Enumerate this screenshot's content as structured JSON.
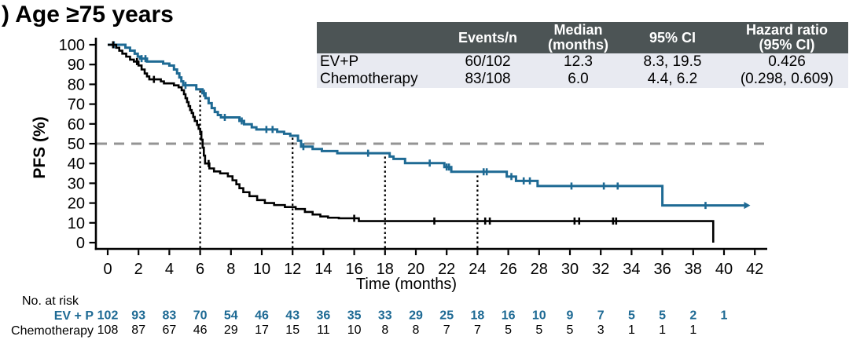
{
  "title": ") Age ≥75 years",
  "colors": {
    "evp_blue": "#1e6a94",
    "chemo_black": "#000000",
    "table_header_bg": "#4c5455",
    "table_row_bg": "#e8eaf1",
    "dashed_gray": "#949494"
  },
  "summary_table": {
    "corner_label": "",
    "headers": {
      "events": "Events/n",
      "median_line1": "Median",
      "median_line2": "(months)",
      "ci": "95% CI",
      "hr_line1": "Hazard ratio",
      "hr_line2": "(95% CI)"
    },
    "rows": [
      {
        "label": "EV+P",
        "events_n": "60/102",
        "median": "12.3",
        "ci": "8.3, 19.5",
        "hr": "0.426"
      },
      {
        "label": "Chemotherapy",
        "events_n": "83/108",
        "median": "6.0",
        "ci": "4.4, 6.2",
        "hr": "(0.298, 0.609)"
      }
    ]
  },
  "chart_data": {
    "type": "line",
    "subtype": "kaplan-meier-step",
    "title": ") Age ≥75 years",
    "xlabel": "Time (months)",
    "ylabel": "PFS (%)",
    "xlim": [
      0,
      42
    ],
    "ylim": [
      0,
      100
    ],
    "xticks": [
      0,
      2,
      4,
      6,
      8,
      10,
      12,
      14,
      16,
      18,
      20,
      22,
      24,
      26,
      28,
      30,
      32,
      34,
      36,
      38,
      40,
      42
    ],
    "yticks": [
      0,
      10,
      20,
      30,
      40,
      50,
      60,
      70,
      80,
      90,
      100
    ],
    "grid": false,
    "reference_lines": {
      "horizontal_dashed_y": 50,
      "vertical_dotted": [
        {
          "x": 6,
          "top_y": 77.5
        },
        {
          "x": 12,
          "top_y": 54
        },
        {
          "x": 18,
          "top_y": 43.5
        },
        {
          "x": 24,
          "top_y": 35.8
        }
      ]
    },
    "series": [
      {
        "name": "EV+P",
        "color": "#1e6a94",
        "start_y": 100,
        "steps": [
          [
            1.15,
            98.5
          ],
          [
            1.45,
            97
          ],
          [
            1.75,
            95.5
          ],
          [
            1.95,
            94
          ],
          [
            2.1,
            93
          ],
          [
            2.55,
            91.5
          ],
          [
            3.6,
            90.5
          ],
          [
            4.0,
            89.5
          ],
          [
            4.3,
            87.5
          ],
          [
            4.5,
            85.5
          ],
          [
            4.65,
            83.5
          ],
          [
            4.78,
            81.5
          ],
          [
            4.9,
            79.5
          ],
          [
            5.75,
            77.5
          ],
          [
            6.15,
            75.5
          ],
          [
            6.35,
            73
          ],
          [
            6.55,
            70.5
          ],
          [
            6.75,
            68
          ],
          [
            6.95,
            66
          ],
          [
            7.15,
            64.5
          ],
          [
            7.35,
            63.3
          ],
          [
            8.55,
            61.5
          ],
          [
            8.85,
            59.8
          ],
          [
            9.35,
            58.3
          ],
          [
            9.65,
            57.2
          ],
          [
            11.0,
            56
          ],
          [
            11.45,
            55
          ],
          [
            11.85,
            54
          ],
          [
            12.35,
            51.5
          ],
          [
            12.55,
            48.5
          ],
          [
            13.3,
            47.3
          ],
          [
            13.9,
            46.3
          ],
          [
            14.9,
            45.2
          ],
          [
            18.3,
            43.5
          ],
          [
            18.55,
            42.3
          ],
          [
            19.3,
            40.2
          ],
          [
            21.85,
            38.2
          ],
          [
            22.3,
            35.8
          ],
          [
            25.9,
            33.4
          ],
          [
            26.5,
            31.2
          ],
          [
            27.9,
            28.6
          ],
          [
            36.0,
            18.8
          ]
        ],
        "end": [
          41.3,
          18.8
        ],
        "end_marker": "arrow",
        "censors": [
          [
            0.4,
            100
          ],
          [
            2.2,
            93
          ],
          [
            2.45,
            93
          ],
          [
            5.05,
            79.5
          ],
          [
            6.25,
            75.5
          ],
          [
            7.6,
            63.3
          ],
          [
            8.7,
            61.5
          ],
          [
            10.3,
            57.2
          ],
          [
            10.7,
            57.2
          ],
          [
            12.7,
            48.5
          ],
          [
            16.9,
            45.2
          ],
          [
            20.9,
            40.2
          ],
          [
            22.0,
            38.2
          ],
          [
            22.15,
            38.2
          ],
          [
            24.4,
            35.8
          ],
          [
            24.6,
            35.8
          ],
          [
            26.2,
            33.4
          ],
          [
            27.0,
            31.2
          ],
          [
            27.4,
            31.2
          ],
          [
            30.1,
            28.6
          ],
          [
            32.2,
            28.6
          ],
          [
            33.1,
            28.6
          ],
          [
            38.8,
            18.8
          ]
        ]
      },
      {
        "name": "Chemotherapy",
        "color": "#000000",
        "start_y": 100,
        "steps": [
          [
            0.55,
            98.5
          ],
          [
            0.75,
            97
          ],
          [
            0.95,
            95.5
          ],
          [
            1.2,
            94
          ],
          [
            1.45,
            92.5
          ],
          [
            1.7,
            91.5
          ],
          [
            2.0,
            89.5
          ],
          [
            2.2,
            87.5
          ],
          [
            2.4,
            85.5
          ],
          [
            2.55,
            84
          ],
          [
            2.7,
            82.5
          ],
          [
            3.45,
            81.5
          ],
          [
            3.65,
            80.5
          ],
          [
            4.3,
            79.5
          ],
          [
            4.6,
            78.5
          ],
          [
            4.8,
            77
          ],
          [
            4.95,
            75
          ],
          [
            5.05,
            73
          ],
          [
            5.15,
            71
          ],
          [
            5.25,
            69
          ],
          [
            5.35,
            67
          ],
          [
            5.45,
            65.5
          ],
          [
            5.55,
            63.5
          ],
          [
            5.65,
            61.5
          ],
          [
            5.8,
            59.5
          ],
          [
            5.9,
            57.5
          ],
          [
            6.0,
            56
          ],
          [
            6.08,
            52
          ],
          [
            6.16,
            48
          ],
          [
            6.24,
            44
          ],
          [
            6.32,
            40
          ],
          [
            6.6,
            37.5
          ],
          [
            6.9,
            36
          ],
          [
            7.3,
            35
          ],
          [
            7.8,
            33.5
          ],
          [
            8.1,
            31.5
          ],
          [
            8.35,
            29.5
          ],
          [
            8.55,
            27.5
          ],
          [
            8.8,
            25.5
          ],
          [
            9.2,
            23.5
          ],
          [
            9.7,
            21.5
          ],
          [
            10.2,
            20
          ],
          [
            10.8,
            19
          ],
          [
            11.5,
            18
          ],
          [
            12.2,
            17
          ],
          [
            12.8,
            15.5
          ],
          [
            13.3,
            14.2
          ],
          [
            13.8,
            13.2
          ],
          [
            14.3,
            12.6
          ],
          [
            15.0,
            12.3
          ],
          [
            16.3,
            10.9
          ]
        ],
        "end": [
          39.3,
          0
        ],
        "end_marker": "drop",
        "censors": [
          [
            0.35,
            100
          ],
          [
            1.9,
            91.5
          ],
          [
            3.0,
            82.5
          ],
          [
            6.55,
            40
          ],
          [
            16.0,
            12.3
          ],
          [
            21.2,
            10.9
          ],
          [
            24.5,
            10.9
          ],
          [
            24.8,
            10.9
          ],
          [
            30.3,
            10.9
          ],
          [
            30.6,
            10.9
          ],
          [
            32.8,
            10.9
          ],
          [
            33.0,
            10.9
          ]
        ]
      }
    ]
  },
  "risk_table": {
    "caption": "No. at risk",
    "times": [
      0,
      2,
      4,
      6,
      8,
      10,
      12,
      14,
      16,
      18,
      20,
      22,
      24,
      26,
      28,
      30,
      32,
      34,
      36,
      38,
      40
    ],
    "rows": [
      {
        "name": "EV + P",
        "color": "#1e6a94",
        "bold": true,
        "counts": [
          102,
          93,
          83,
          70,
          54,
          46,
          43,
          36,
          35,
          33,
          29,
          25,
          18,
          16,
          10,
          9,
          7,
          5,
          5,
          2,
          1
        ]
      },
      {
        "name": "Chemotherapy",
        "color": "#000000",
        "bold": false,
        "counts": [
          108,
          87,
          67,
          46,
          29,
          17,
          15,
          11,
          10,
          8,
          8,
          7,
          7,
          5,
          5,
          5,
          3,
          1,
          1,
          1
        ]
      }
    ]
  }
}
